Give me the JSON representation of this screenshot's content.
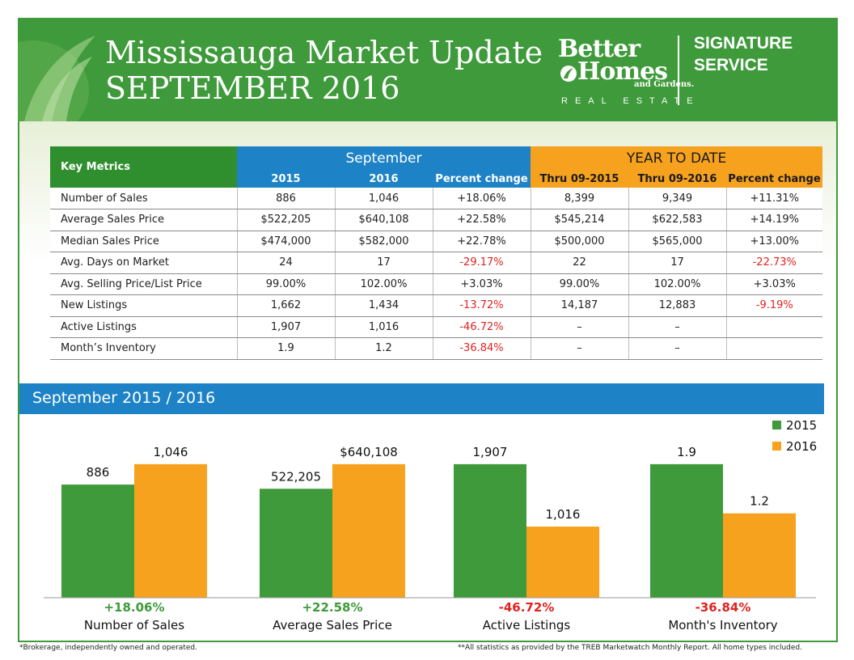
{
  "header": {
    "title_line1": "Mississauga Market Update",
    "title_line2": "SEPTEMBER 2016",
    "brand_word1": "Better",
    "brand_word2": "Homes",
    "brand_sub": "and Gardens.",
    "brand_realestate": "REAL ESTATE",
    "service_line1": "SIGNATURE",
    "service_line2": "SERVICE"
  },
  "colors": {
    "header_green": "#3e9a3a",
    "table_blue": "#1e83c6",
    "table_orange": "#f6a21f",
    "bar_2015": "#3e9a3a",
    "bar_2016": "#f6a21f",
    "positive": "#3e9a3a",
    "negative": "#e0231f"
  },
  "table": {
    "key_metrics_label": "Key Metrics",
    "group_september": "September",
    "group_ytd": "YEAR TO DATE",
    "columns": [
      "2015",
      "2016",
      "Percent change",
      "Thru 09-2015",
      "Thru 09-2016",
      "Percent change"
    ],
    "rows": [
      {
        "label": "Number of Sales",
        "values": [
          "886",
          "1,046",
          "+18.06%",
          "8,399",
          "9,349",
          "+11.31%"
        ]
      },
      {
        "label": "Average Sales Price",
        "values": [
          "$522,205",
          "$640,108",
          "+22.58%",
          "$545,214",
          "$622,583",
          "+14.19%"
        ]
      },
      {
        "label": "Median Sales Price",
        "values": [
          "$474,000",
          "$582,000",
          "+22.78%",
          "$500,000",
          "$565,000",
          "+13.00%"
        ]
      },
      {
        "label": "Avg. Days on Market",
        "values": [
          "24",
          "17",
          "-29.17%",
          "22",
          "17",
          "-22.73%"
        ]
      },
      {
        "label": "Avg. Selling Price/List Price",
        "values": [
          "99.00%",
          "102.00%",
          "+3.03%",
          "99.00%",
          "102.00%",
          "+3.03%"
        ]
      },
      {
        "label": "New Listings",
        "values": [
          "1,662",
          "1,434",
          "-13.72%",
          "14,187",
          "12,883",
          "-9.19%"
        ]
      },
      {
        "label": "Active Listings",
        "values": [
          "1,907",
          "1,016",
          "-46.72%",
          "–",
          "–",
          ""
        ]
      },
      {
        "label": "Month’s Inventory",
        "values": [
          "1.9",
          "1.2",
          "-36.84%",
          "–",
          "–",
          ""
        ]
      }
    ]
  },
  "chart_heading": "September 2015 / 2016",
  "chart_data": {
    "type": "bar",
    "legend": "top-right",
    "grid": false,
    "series": [
      {
        "name": "2015",
        "values": [
          886,
          522205,
          1907,
          1.9
        ],
        "labels": [
          "886",
          "522,205",
          "1,907",
          "1.9"
        ]
      },
      {
        "name": "2016",
        "values": [
          1046,
          640108,
          1016,
          1.2
        ],
        "labels": [
          "1,046",
          "$640,108",
          "1,016",
          "1.2"
        ]
      }
    ],
    "groups": [
      {
        "name": "Number of Sales",
        "change": "+18.06%"
      },
      {
        "name": "Average Sales Price",
        "change": "+22.58%"
      },
      {
        "name": "Active Listings",
        "change": "-46.72%"
      },
      {
        "name": "Month's Inventory",
        "change": "-36.84%"
      }
    ]
  },
  "footnotes": {
    "left": "*Brokerage, independently owned and operated.",
    "right": "**All statistics as provided by the TREB Marketwatch Monthly Report. All home types included."
  }
}
